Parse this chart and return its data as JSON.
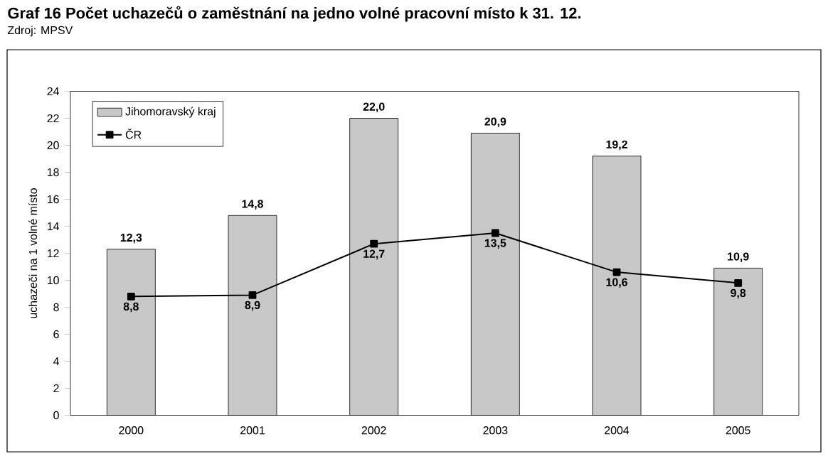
{
  "chart_data": {
    "type": "bar",
    "title": "Graf 16  Počet uchazečů o zaměstnání na jedno volné pracovní místo k 31. 12.",
    "subtitle": "Zdroj: MPSV",
    "ylabel": "uchazeči na 1 volné místo",
    "categories": [
      "2000",
      "2001",
      "2002",
      "2003",
      "2004",
      "2005"
    ],
    "series": [
      {
        "name": "Jihomoravský kraj",
        "color": "#c8c8c8",
        "values": [
          12.3,
          14.8,
          22.0,
          20.9,
          19.2,
          10.9
        ],
        "value_labels": [
          "12,3",
          "14,8",
          "22,0",
          "20,9",
          "19,2",
          "10,9"
        ]
      },
      {
        "name": "ČR",
        "type": "line",
        "color": "#000000",
        "marker": "square",
        "values": [
          8.8,
          8.9,
          12.7,
          13.5,
          10.6,
          9.8
        ],
        "value_labels": [
          "8,8",
          "8,9",
          "12,7",
          "13,5",
          "10,6",
          "9,8"
        ]
      }
    ],
    "ylim": [
      0,
      24
    ],
    "yticks": [
      0,
      2,
      4,
      6,
      8,
      10,
      12,
      14,
      16,
      18,
      20,
      22,
      24
    ],
    "grid": false,
    "legend": "top left"
  }
}
